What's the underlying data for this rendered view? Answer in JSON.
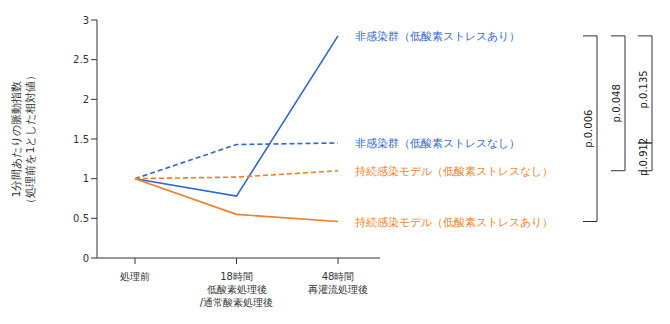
{
  "chart_data": {
    "type": "line",
    "y_label": "1分間あたりの脈動指数\n（処理前を1とした相対値）",
    "categories": [
      "処理前",
      "18時間\n低酸素処理後\n/通常酸素処理後",
      "48時間\n再灌流処理後"
    ],
    "series": [
      {
        "name": "非感染群（低酸素ストレスあり）",
        "color": "#3366cc",
        "line_style": "solid",
        "values": [
          1,
          0.78,
          2.8
        ]
      },
      {
        "name": "非感染群（低酸素ストレスなし）",
        "color": "#3366cc",
        "line_style": "dashed",
        "values": [
          1,
          1.43,
          1.45
        ]
      },
      {
        "name": "持続感染モデル（低酸素ストレスなし）",
        "color": "#f07f2a",
        "line_style": "dashed",
        "values": [
          1,
          1.02,
          1.1
        ]
      },
      {
        "name": "持続感染モデル（低酸素ストレスあり）",
        "color": "#f07f2a",
        "line_style": "solid",
        "values": [
          1,
          0.55,
          0.46
        ]
      }
    ],
    "ylim": [
      0,
      3
    ],
    "yticks": [
      0,
      0.5,
      1,
      1.5,
      2,
      2.5,
      3
    ],
    "grid": false,
    "annotations": [
      {
        "text": "p.0.006",
        "from": "非感染群（低酸素ストレスあり）",
        "to": "持続感染モデル（低酸素ストレスあり）"
      },
      {
        "text": "p.0.048",
        "from": "非感染群（低酸素ストレスあり）",
        "to": "持続感染モデル（低酸素ストレスなし）"
      },
      {
        "text": "p.0.135",
        "from": "非感染群（低酸素ストレスあり）",
        "to": "非感染群（低酸素ストレスなし）"
      },
      {
        "text": "p.0.912",
        "from": "非感染群（低酸素ストレスなし）",
        "to": "持続感染モデル（低酸素ストレスなし）"
      }
    ]
  }
}
